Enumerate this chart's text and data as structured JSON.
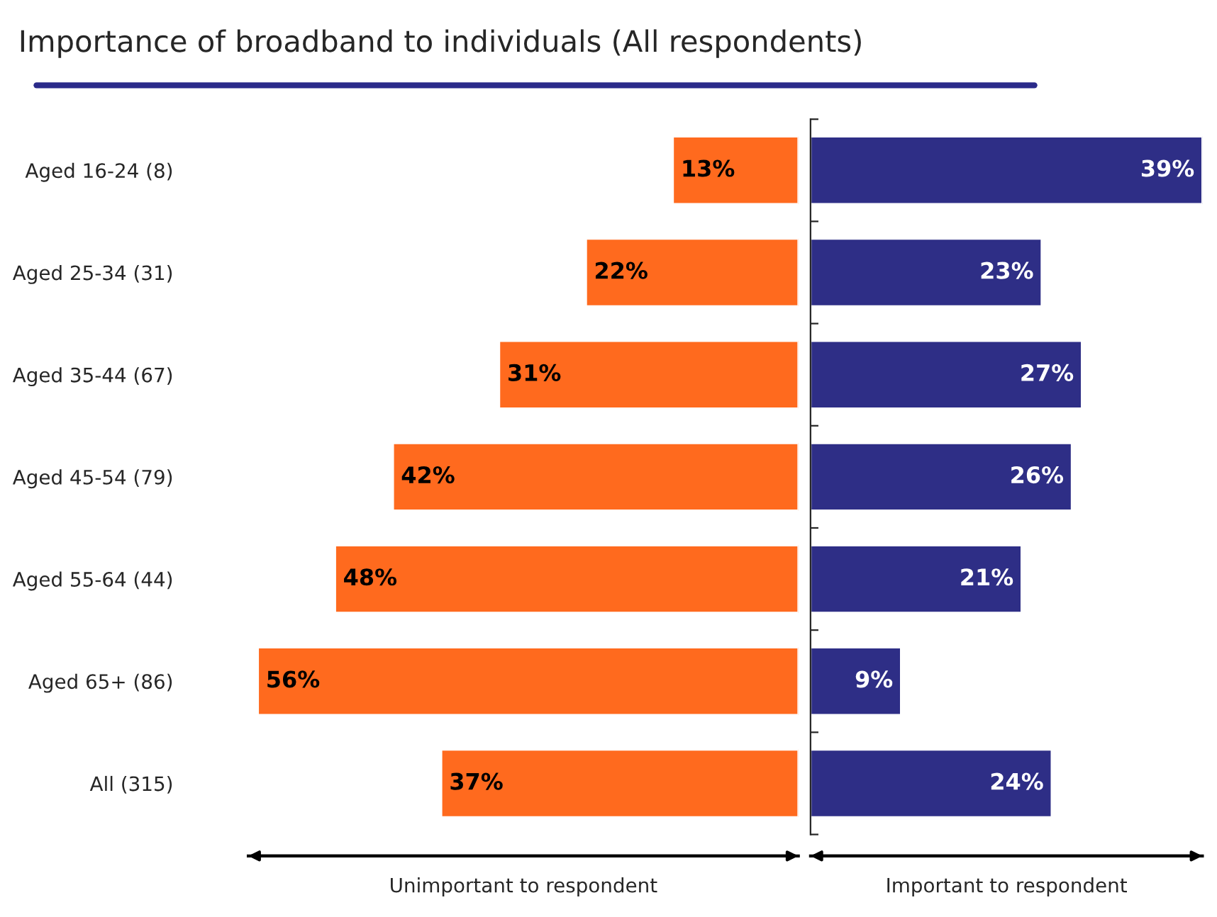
{
  "chart_data": [
    {
      "type": "bar",
      "orientation": "horizontal",
      "title": "Importance of broadband to individuals (All respondents)",
      "categories": [
        "Aged 16-24 (8)",
        "Aged 25-34 (31)",
        "Aged 35-44 (67)",
        "Aged 45-54 (79)",
        "Aged 55-64 (44)",
        "Aged 65+ (86)",
        "All (315)"
      ],
      "series": [
        {
          "color": "#ff6a1e",
          "values": [
            13,
            22,
            31,
            42,
            48,
            56,
            37
          ],
          "value_labels": [
            "13%",
            "22%",
            "31%",
            "42%",
            "48%",
            "56%",
            "37%"
          ]
        }
      ],
      "xlim": [
        57,
        0
      ],
      "tick_labels": "y",
      "annotations": [
        "Unimportant to respondent"
      ]
    },
    {
      "type": "bar",
      "orientation": "horizontal",
      "series": [
        {
          "color": "#2e2e86",
          "values": [
            39,
            23,
            27,
            26,
            21,
            9,
            24
          ],
          "value_labels": [
            "39%",
            "23%",
            "27%",
            "26%",
            "21%",
            "9%",
            "24%"
          ]
        }
      ],
      "tick_labels": false,
      "annotations": [
        "Important to respondent"
      ]
    }
  ]
}
